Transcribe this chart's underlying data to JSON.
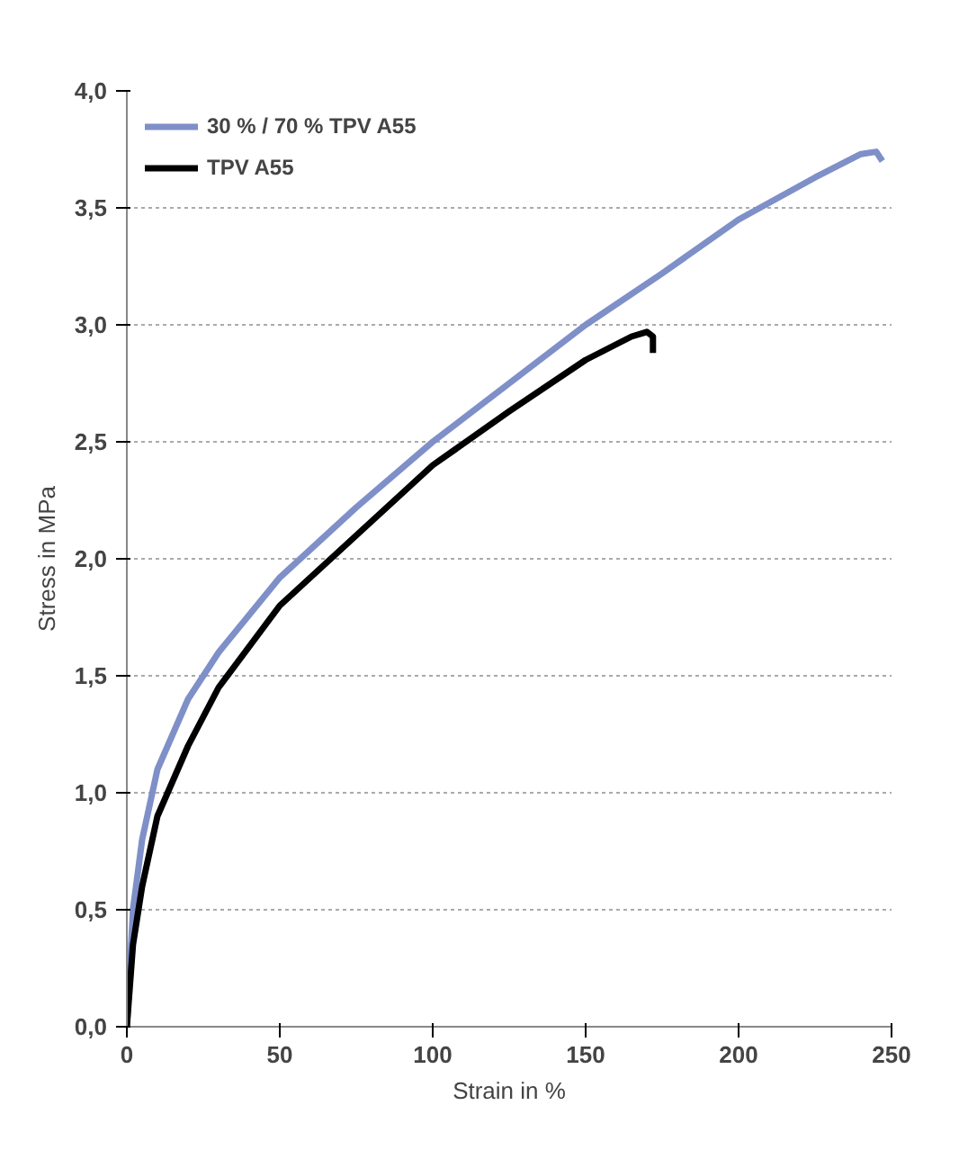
{
  "chart_data": {
    "type": "line",
    "xlabel": "Strain in %",
    "ylabel": "Stress in MPa",
    "xlim": [
      0,
      250
    ],
    "xticks": [
      0,
      50,
      100,
      150,
      200,
      250
    ],
    "ylim": [
      0,
      4
    ],
    "yticks": [
      {
        "value": 0,
        "label": "0,0"
      },
      {
        "value": 0.5,
        "label": "0,5"
      },
      {
        "value": 1,
        "label": "1,0"
      },
      {
        "value": 1.5,
        "label": "1,5"
      },
      {
        "value": 2,
        "label": "2,0"
      },
      {
        "value": 2.5,
        "label": "2,5"
      },
      {
        "value": 3,
        "label": "3,0"
      },
      {
        "value": 3.5,
        "label": "3,5"
      },
      {
        "value": 4,
        "label": "4,0"
      }
    ],
    "grid": "y",
    "legend": "top left",
    "marker": "none",
    "line_style": "solid",
    "series": [
      {
        "name": "30 % / 70 % TPV A55",
        "color": "#7f8fc8",
        "x": [
          0,
          2,
          5,
          10,
          20,
          30,
          50,
          75,
          100,
          125,
          150,
          175,
          200,
          225,
          240,
          245,
          247
        ],
        "values": [
          0,
          0.5,
          0.8,
          1.1,
          1.4,
          1.6,
          1.92,
          2.22,
          2.5,
          2.75,
          3.0,
          3.22,
          3.45,
          3.63,
          3.73,
          3.74,
          3.7
        ]
      },
      {
        "name": "TPV A55",
        "color": "#000000",
        "x": [
          0,
          2,
          5,
          10,
          20,
          30,
          50,
          75,
          100,
          125,
          150,
          165,
          170,
          172,
          172
        ],
        "values": [
          0,
          0.35,
          0.6,
          0.9,
          1.2,
          1.45,
          1.8,
          2.1,
          2.4,
          2.63,
          2.85,
          2.95,
          2.97,
          2.95,
          2.88
        ]
      }
    ]
  }
}
